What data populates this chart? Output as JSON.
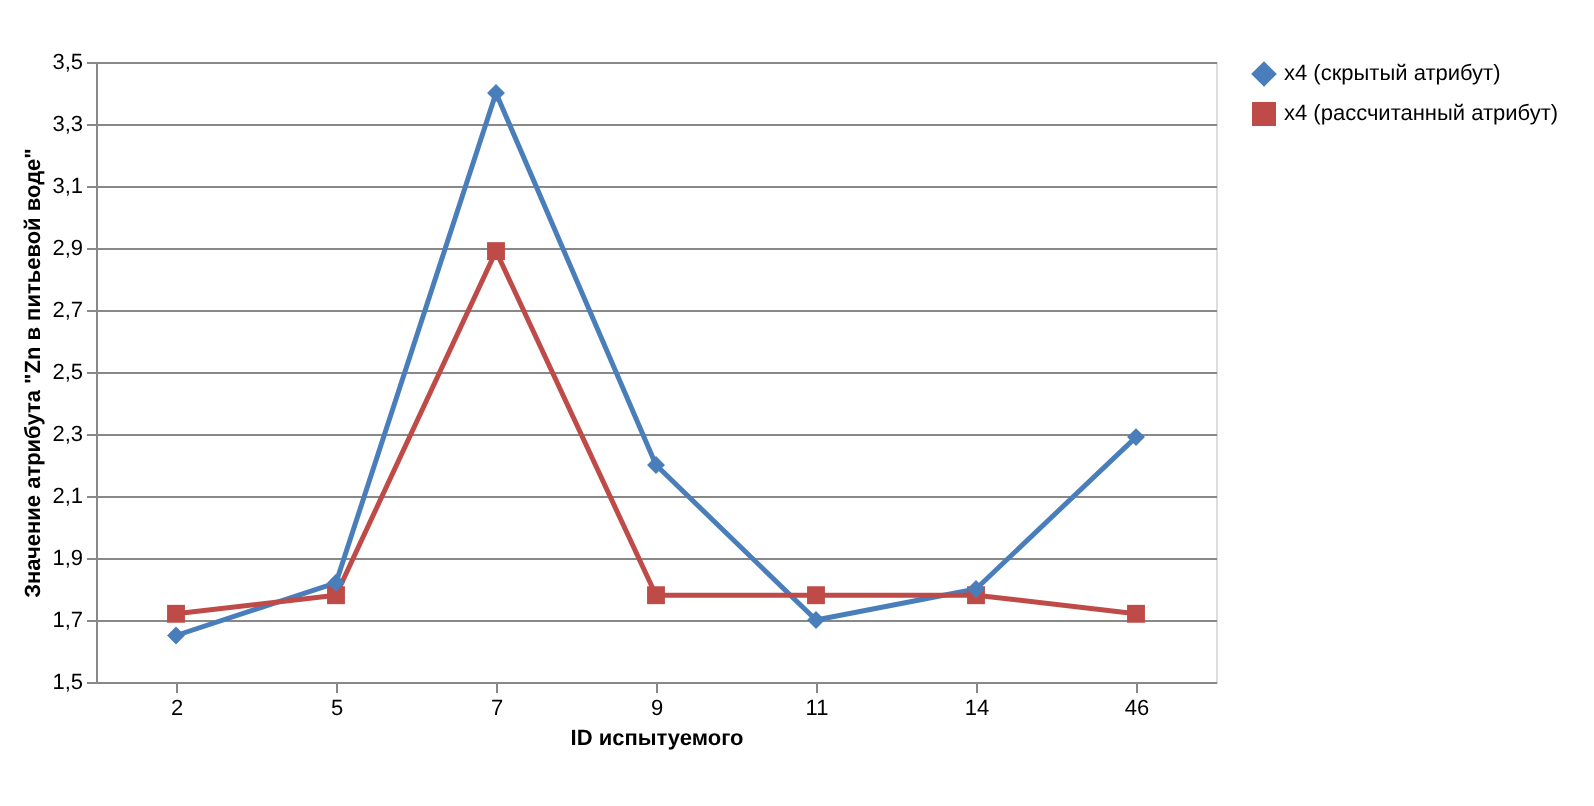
{
  "chart_data": {
    "type": "line",
    "xlabel": "ID испытуемого",
    "ylabel": "Значение атрибута \"Zn  в питьевой воде\"",
    "categories": [
      "2",
      "5",
      "7",
      "9",
      "11",
      "14",
      "46"
    ],
    "series": [
      {
        "name": "x4 (скрытый атрибут)",
        "color": "#4a7ebb",
        "marker": "diamond",
        "values": [
          1.65,
          1.82,
          3.4,
          2.2,
          1.7,
          1.8,
          2.29
        ]
      },
      {
        "name": "x4 (рассчитанный атрибут)",
        "color": "#be4b48",
        "marker": "square",
        "values": [
          1.72,
          1.78,
          2.89,
          1.78,
          1.78,
          1.78,
          1.72
        ]
      }
    ],
    "ylim": [
      1.5,
      3.5
    ],
    "yticks": [
      {
        "value": 1.5,
        "label": "1,5"
      },
      {
        "value": 1.7,
        "label": "1,7"
      },
      {
        "value": 1.9,
        "label": "1,9"
      },
      {
        "value": 2.1,
        "label": "2,1"
      },
      {
        "value": 2.3,
        "label": "2,3"
      },
      {
        "value": 2.5,
        "label": "2,5"
      },
      {
        "value": 2.7,
        "label": "2,7"
      },
      {
        "value": 2.9,
        "label": "2,9"
      },
      {
        "value": 3.1,
        "label": "3,1"
      },
      {
        "value": 3.3,
        "label": "3,3"
      },
      {
        "value": 3.5,
        "label": "3,5"
      }
    ],
    "grid": "y",
    "legend": "right",
    "line_style": "solid"
  }
}
